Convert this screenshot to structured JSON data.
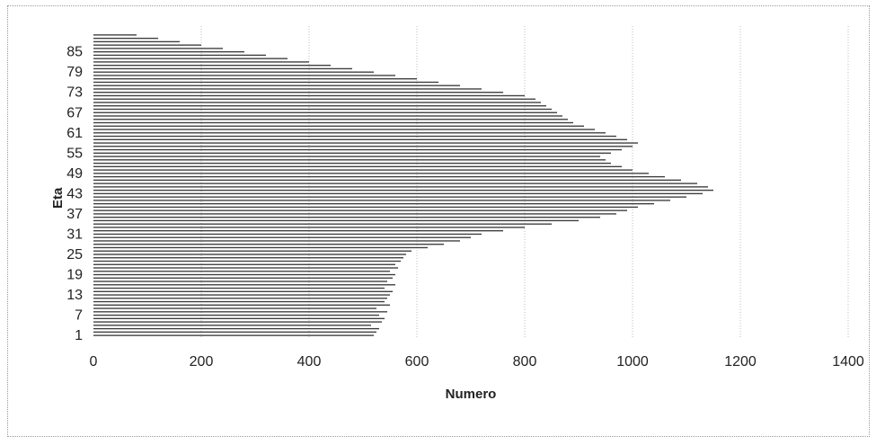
{
  "chart_data": {
    "type": "bar",
    "orientation": "horizontal",
    "xlabel": "Numero",
    "ylabel": "Eta",
    "xlim": [
      0,
      1400
    ],
    "x_ticks": [
      0,
      200,
      400,
      600,
      800,
      1000,
      1200,
      1400
    ],
    "y_tick_labels": [
      "1",
      "7",
      "13",
      "19",
      "25",
      "31",
      "37",
      "43",
      "49",
      "55",
      "61",
      "67",
      "73",
      "79",
      "85"
    ],
    "grid": "vertical",
    "bar_color": "#1a1a1a",
    "categories": [
      "1",
      "2",
      "3",
      "4",
      "5",
      "6",
      "7",
      "8",
      "9",
      "10",
      "11",
      "12",
      "13",
      "14",
      "15",
      "16",
      "17",
      "18",
      "19",
      "20",
      "21",
      "22",
      "23",
      "24",
      "25",
      "26",
      "27",
      "28",
      "29",
      "30",
      "31",
      "32",
      "33",
      "34",
      "35",
      "36",
      "37",
      "38",
      "39",
      "40",
      "41",
      "42",
      "43",
      "44",
      "45",
      "46",
      "47",
      "48",
      "49",
      "50",
      "51",
      "52",
      "53",
      "54",
      "55",
      "56",
      "57",
      "58",
      "59",
      "60",
      "61",
      "62",
      "63",
      "64",
      "65",
      "66",
      "67",
      "68",
      "69",
      "70",
      "71",
      "72",
      "73",
      "74",
      "75",
      "76",
      "77",
      "78",
      "79",
      "80",
      "81",
      "82",
      "83",
      "84",
      "85",
      "86",
      "87",
      "88",
      "89",
      "90"
    ],
    "values": [
      520,
      525,
      530,
      515,
      535,
      540,
      530,
      545,
      525,
      550,
      540,
      545,
      550,
      555,
      540,
      560,
      545,
      555,
      560,
      550,
      565,
      560,
      570,
      575,
      580,
      590,
      620,
      650,
      680,
      700,
      720,
      760,
      800,
      850,
      900,
      940,
      970,
      990,
      1010,
      1040,
      1070,
      1100,
      1130,
      1150,
      1140,
      1120,
      1090,
      1060,
      1030,
      1000,
      980,
      960,
      950,
      940,
      960,
      980,
      1000,
      1010,
      990,
      970,
      950,
      930,
      910,
      890,
      880,
      870,
      860,
      850,
      840,
      830,
      820,
      800,
      760,
      720,
      680,
      640,
      600,
      560,
      520,
      480,
      440,
      400,
      360,
      320,
      280,
      240,
      200,
      160,
      120,
      80
    ]
  }
}
